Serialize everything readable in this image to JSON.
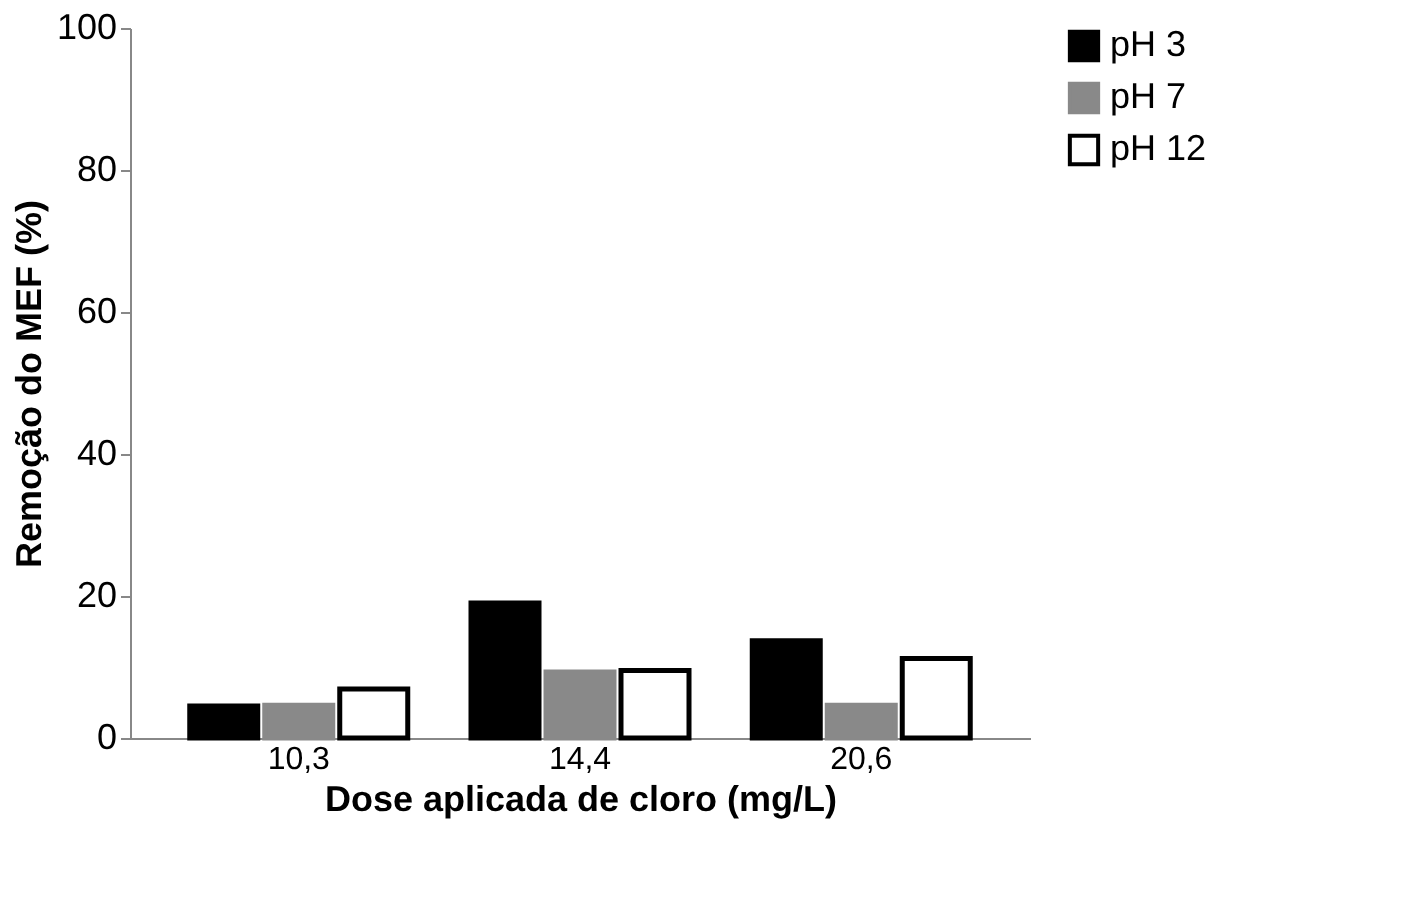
{
  "chart_data": {
    "type": "bar",
    "xlabel": "Dose aplicada de cloro (mg/L)",
    "ylabel": "Remoção do MEF (%)",
    "categories": [
      "10,3",
      "14,4",
      "20,6"
    ],
    "series": [
      {
        "name": "pH 3",
        "color": "#000000",
        "values": [
          4.5,
          19.0,
          13.7
        ]
      },
      {
        "name": "pH 7",
        "color": "#898989",
        "values": [
          4.6,
          9.3,
          4.6
        ]
      },
      {
        "name": "pH 12",
        "color": "#ffffff",
        "values": [
          6.9,
          9.5,
          11.2
        ]
      }
    ],
    "ylim": [
      0,
      100
    ],
    "yticks": [
      0,
      20,
      40,
      60,
      80,
      100
    ],
    "grid": false,
    "legend": "right"
  }
}
